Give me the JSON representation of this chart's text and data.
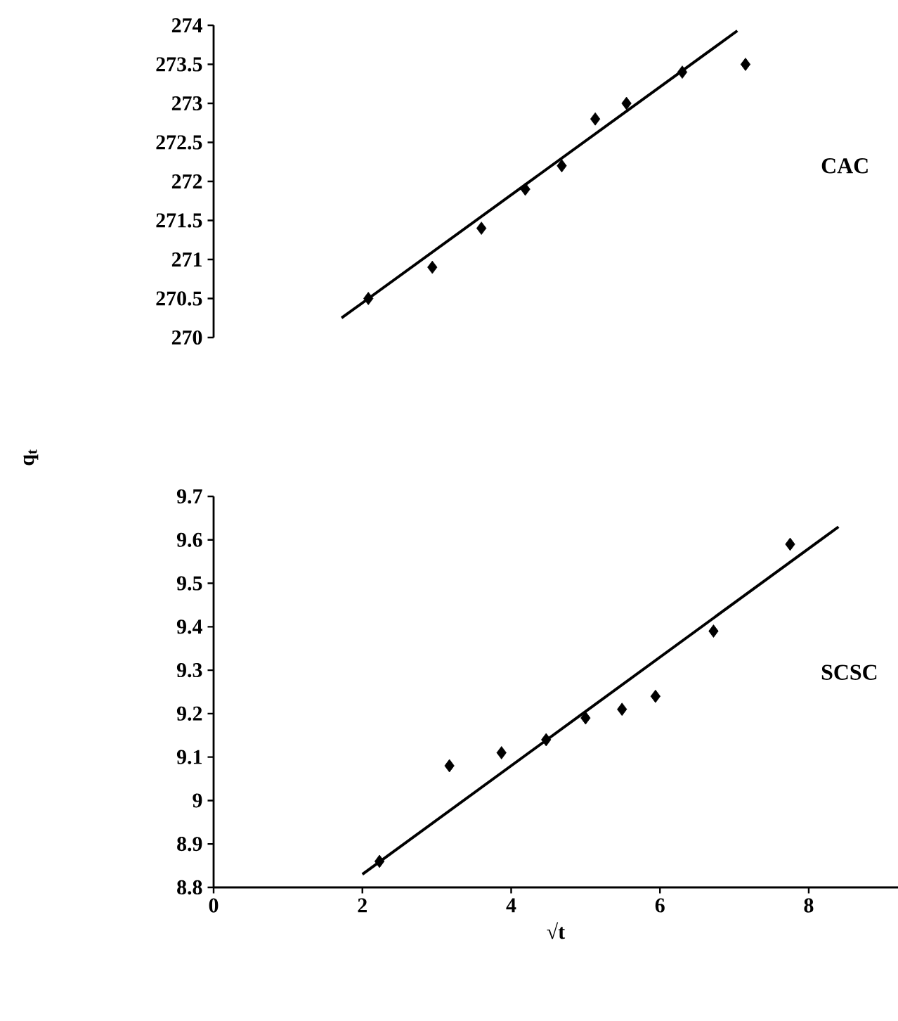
{
  "chart_data": [
    {
      "type": "scatter",
      "xlim": [
        0,
        8
      ],
      "xticks": [
        0,
        2,
        4,
        6,
        8
      ],
      "ylim": [
        270,
        274
      ],
      "yticks": [
        270,
        270.5,
        271,
        271.5,
        272,
        272.5,
        273,
        273.5,
        274
      ],
      "tick_labels": "y",
      "grid": false,
      "annotations": [
        "CAC"
      ],
      "series": [
        {
          "color": "#000000",
          "marker": "diamond",
          "x": [
            2.08,
            2.94,
            3.6,
            4.19,
            4.68,
            5.13,
            5.55,
            6.3,
            7.15
          ],
          "values": [
            270.5,
            270.9,
            271.4,
            271.9,
            272.2,
            272.8,
            273.0,
            273.4,
            273.5
          ]
        },
        {
          "type": "line",
          "color": "#000000",
          "marker": "none",
          "x": [
            1.72,
            7.04
          ],
          "values": [
            270.25,
            273.93
          ]
        }
      ]
    },
    {
      "type": "scatter",
      "xlim": [
        0,
        9.2
      ],
      "ylim": [
        8.8,
        9.7
      ],
      "xticks": [
        0,
        2,
        4,
        6,
        8
      ],
      "yticks": [
        8.8,
        8.9,
        9,
        9.1,
        9.2,
        9.3,
        9.4,
        9.5,
        9.6,
        9.7
      ],
      "grid": false,
      "xlabel": "√t",
      "ylabel": "q$_{t}$",
      "annotations": [
        "SCSC"
      ],
      "series": [
        {
          "color": "#000000",
          "marker": "diamond",
          "x": [
            2.23,
            3.17,
            3.87,
            4.47,
            5.0,
            5.49,
            5.94,
            6.72,
            7.75
          ],
          "values": [
            8.86,
            9.08,
            9.11,
            9.14,
            9.19,
            9.21,
            9.24,
            9.39,
            9.59
          ]
        },
        {
          "type": "line",
          "color": "#000000",
          "marker": "none",
          "x": [
            2.0,
            8.4
          ],
          "values": [
            8.83,
            9.63
          ]
        }
      ]
    }
  ]
}
